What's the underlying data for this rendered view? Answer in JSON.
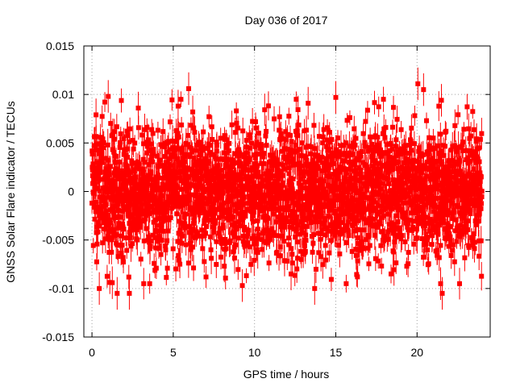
{
  "chart_data": {
    "type": "scatter",
    "title": "Day 036 of 2017",
    "xlabel": "GPS time / hours",
    "ylabel": "GNSS Solar Flare indicator / TECUs",
    "xlim": [
      -0.5,
      24.5
    ],
    "ylim": [
      -0.015,
      0.015
    ],
    "xticks": [
      0,
      5,
      10,
      15,
      20
    ],
    "xtick_labels": [
      "0",
      "5",
      "10",
      "15",
      "20"
    ],
    "yticks": [
      -0.015,
      -0.01,
      -0.005,
      0,
      0.005,
      0.01,
      0.015
    ],
    "ytick_labels": [
      "-0.015",
      "-0.01",
      "-0.005",
      "0",
      "0.005",
      "0.01",
      "0.015"
    ],
    "grid": true,
    "series": [
      {
        "color": "#ff0000",
        "marker": "square",
        "error_bars": true,
        "error_bar_typical": 0.0012,
        "samples": 2880,
        "x_range": [
          0,
          23.99
        ],
        "y_std": 0.0033,
        "points": [
          {
            "x": 0.25,
            "y": 0.0079
          },
          {
            "x": 0.45,
            "y": -0.01
          },
          {
            "x": 1.0,
            "y": 0.0098
          },
          {
            "x": 1.25,
            "y": -0.0094
          },
          {
            "x": 1.55,
            "y": -0.0105
          },
          {
            "x": 2.3,
            "y": -0.0105
          },
          {
            "x": 2.85,
            "y": 0.0086
          },
          {
            "x": 5.3,
            "y": 0.0088
          },
          {
            "x": 5.95,
            "y": 0.0106
          },
          {
            "x": 6.2,
            "y": 0.0082
          },
          {
            "x": 9.25,
            "y": -0.0097
          },
          {
            "x": 12.25,
            "y": -0.0085
          },
          {
            "x": 13.3,
            "y": 0.0091
          },
          {
            "x": 13.7,
            "y": -0.01
          },
          {
            "x": 15.0,
            "y": 0.0097
          },
          {
            "x": 20.05,
            "y": 0.0111
          },
          {
            "x": 20.4,
            "y": 0.0105
          },
          {
            "x": 21.45,
            "y": -0.0095
          },
          {
            "x": 21.5,
            "y": 0.0094
          },
          {
            "x": 21.55,
            "y": -0.0105
          }
        ]
      }
    ]
  }
}
